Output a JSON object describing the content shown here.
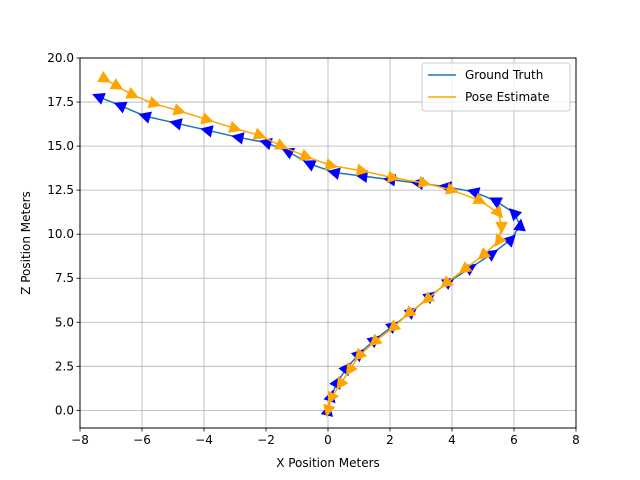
{
  "chart_data": {
    "type": "line",
    "xlabel": "X Position Meters",
    "ylabel": "Z Position Meters",
    "xlim": [
      -8,
      8
    ],
    "ylim": [
      -1,
      20
    ],
    "xticks": [
      -8,
      -6,
      -4,
      -2,
      0,
      2,
      4,
      6,
      8
    ],
    "xtick_labels": [
      "−8",
      "−6",
      "−4",
      "−2",
      "0",
      "2",
      "4",
      "6",
      "8"
    ],
    "yticks": [
      0,
      2.5,
      5,
      7.5,
      10,
      12.5,
      15,
      17.5,
      20
    ],
    "ytick_labels": [
      "0.0",
      "2.5",
      "5.0",
      "7.5",
      "10.0",
      "12.5",
      "15.0",
      "17.5",
      "20.0"
    ],
    "grid": true,
    "legend_position": "top-right",
    "series": [
      {
        "name": "Ground Truth",
        "line_color": "#1f77b4",
        "marker_color": "#0000ff",
        "points": [
          [
            0.0,
            0.0
          ],
          [
            0.1,
            0.8
          ],
          [
            0.3,
            1.6
          ],
          [
            0.6,
            2.4
          ],
          [
            1.0,
            3.2
          ],
          [
            1.5,
            4.0
          ],
          [
            2.1,
            4.8
          ],
          [
            2.7,
            5.6
          ],
          [
            3.3,
            6.5
          ],
          [
            3.9,
            7.3
          ],
          [
            4.6,
            8.1
          ],
          [
            5.3,
            8.9
          ],
          [
            5.9,
            9.7
          ],
          [
            6.2,
            10.5
          ],
          [
            6.0,
            11.2
          ],
          [
            5.4,
            11.9
          ],
          [
            4.7,
            12.4
          ],
          [
            3.8,
            12.7
          ],
          [
            2.9,
            12.9
          ],
          [
            2.0,
            13.1
          ],
          [
            1.1,
            13.3
          ],
          [
            0.2,
            13.5
          ],
          [
            -0.6,
            14.0
          ],
          [
            -1.3,
            14.7
          ],
          [
            -2.0,
            15.2
          ],
          [
            -2.9,
            15.5
          ],
          [
            -3.9,
            15.9
          ],
          [
            -4.9,
            16.3
          ],
          [
            -5.9,
            16.7
          ],
          [
            -6.7,
            17.3
          ],
          [
            -7.4,
            17.8
          ]
        ]
      },
      {
        "name": "Pose Estimate",
        "line_color": "#ffa500",
        "marker_color": "#ffa500",
        "points": [
          [
            0.0,
            0.0
          ],
          [
            0.1,
            0.7
          ],
          [
            0.4,
            1.5
          ],
          [
            0.7,
            2.3
          ],
          [
            1.0,
            3.1
          ],
          [
            1.5,
            3.9
          ],
          [
            2.1,
            4.7
          ],
          [
            2.6,
            5.5
          ],
          [
            3.2,
            6.3
          ],
          [
            3.8,
            7.2
          ],
          [
            4.4,
            8.0
          ],
          [
            5.0,
            8.8
          ],
          [
            5.5,
            9.6
          ],
          [
            5.6,
            10.4
          ],
          [
            5.5,
            11.2
          ],
          [
            4.9,
            11.9
          ],
          [
            4.0,
            12.5
          ],
          [
            3.1,
            12.9
          ],
          [
            2.1,
            13.2
          ],
          [
            1.1,
            13.6
          ],
          [
            0.1,
            13.9
          ],
          [
            -0.7,
            14.4
          ],
          [
            -1.5,
            15.0
          ],
          [
            -2.2,
            15.6
          ],
          [
            -3.0,
            16.0
          ],
          [
            -3.9,
            16.5
          ],
          [
            -4.8,
            17.0
          ],
          [
            -5.6,
            17.4
          ],
          [
            -6.3,
            17.9
          ],
          [
            -6.8,
            18.4
          ],
          [
            -7.2,
            18.8
          ]
        ]
      }
    ]
  }
}
